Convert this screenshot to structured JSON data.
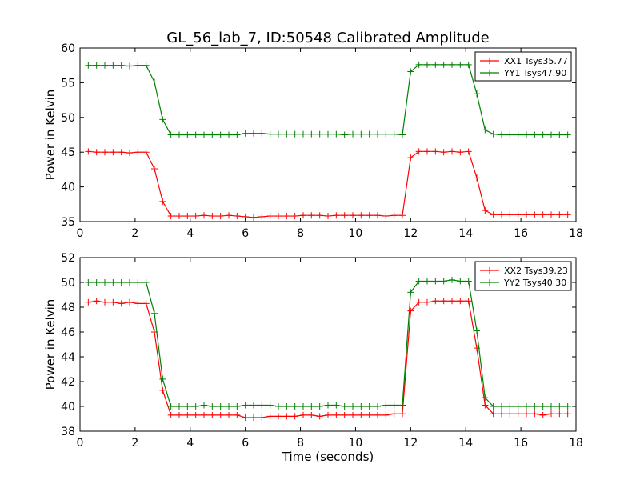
{
  "figure": {
    "title": "GL_56_lab_7, ID:50548 Calibrated Amplitude",
    "xlabel": "Time (seconds)"
  },
  "colors": {
    "xx": "#ff0000",
    "yy": "#008000"
  },
  "chart_data": [
    {
      "type": "line",
      "title": "GL_56_lab_7, ID:50548 Calibrated Amplitude",
      "xlabel": "",
      "ylabel": "Power in Kelvin",
      "xlim": [
        0,
        18
      ],
      "ylim": [
        35,
        60
      ],
      "xticks": [
        "0",
        "2",
        "4",
        "6",
        "8",
        "10",
        "12",
        "14",
        "16",
        "18"
      ],
      "yticks": [
        "35",
        "40",
        "45",
        "50",
        "55",
        "60"
      ],
      "legend_position": "top-right",
      "x": [
        0.3,
        0.6,
        0.9,
        1.2,
        1.5,
        1.8,
        2.1,
        2.4,
        2.7,
        3.0,
        3.3,
        3.6,
        3.9,
        4.2,
        4.5,
        4.8,
        5.1,
        5.4,
        5.7,
        6.0,
        6.3,
        6.6,
        6.9,
        7.2,
        7.5,
        7.8,
        8.1,
        8.4,
        8.7,
        9.0,
        9.3,
        9.6,
        9.9,
        10.2,
        10.5,
        10.8,
        11.1,
        11.4,
        11.7,
        12.0,
        12.3,
        12.6,
        12.9,
        13.2,
        13.5,
        13.8,
        14.1,
        14.4,
        14.7,
        15.0,
        15.3,
        15.6,
        15.9,
        16.2,
        16.5,
        16.8,
        17.1,
        17.4,
        17.7
      ],
      "series": [
        {
          "name": "XX1 Tsys35.77",
          "values": [
            45.1,
            45.0,
            45.0,
            45.0,
            45.0,
            44.9,
            45.0,
            45.0,
            42.6,
            37.9,
            35.8,
            35.8,
            35.8,
            35.8,
            35.9,
            35.8,
            35.8,
            35.9,
            35.8,
            35.7,
            35.6,
            35.7,
            35.8,
            35.8,
            35.8,
            35.8,
            35.9,
            35.9,
            35.9,
            35.8,
            35.9,
            35.9,
            35.9,
            35.9,
            35.9,
            35.9,
            35.8,
            35.9,
            35.9,
            44.2,
            45.1,
            45.1,
            45.1,
            45.0,
            45.1,
            45.0,
            45.1,
            41.3,
            36.6,
            36.0,
            36.0,
            36.0,
            36.0,
            36.0,
            36.0,
            36.0,
            36.0,
            36.0,
            36.0
          ]
        },
        {
          "name": "YY1 Tsys47.90",
          "values": [
            57.5,
            57.5,
            57.5,
            57.5,
            57.5,
            57.4,
            57.5,
            57.5,
            55.1,
            49.7,
            47.5,
            47.5,
            47.5,
            47.5,
            47.5,
            47.5,
            47.5,
            47.5,
            47.5,
            47.7,
            47.7,
            47.7,
            47.6,
            47.6,
            47.6,
            47.6,
            47.6,
            47.6,
            47.6,
            47.6,
            47.6,
            47.5,
            47.6,
            47.6,
            47.6,
            47.6,
            47.6,
            47.6,
            47.5,
            56.6,
            57.6,
            57.6,
            57.6,
            57.6,
            57.6,
            57.6,
            57.6,
            53.4,
            48.2,
            47.6,
            47.5,
            47.5,
            47.5,
            47.5,
            47.5,
            47.5,
            47.5,
            47.5,
            47.5
          ]
        }
      ]
    },
    {
      "type": "line",
      "title": "",
      "xlabel": "Time (seconds)",
      "ylabel": "Power in Kelvin",
      "xlim": [
        0,
        18
      ],
      "ylim": [
        38,
        52
      ],
      "xticks": [
        "0",
        "2",
        "4",
        "6",
        "8",
        "10",
        "12",
        "14",
        "16",
        "18"
      ],
      "yticks": [
        "38",
        "40",
        "42",
        "44",
        "46",
        "48",
        "50",
        "52"
      ],
      "legend_position": "top-right",
      "x": [
        0.3,
        0.6,
        0.9,
        1.2,
        1.5,
        1.8,
        2.1,
        2.4,
        2.7,
        3.0,
        3.3,
        3.6,
        3.9,
        4.2,
        4.5,
        4.8,
        5.1,
        5.4,
        5.7,
        6.0,
        6.3,
        6.6,
        6.9,
        7.2,
        7.5,
        7.8,
        8.1,
        8.4,
        8.7,
        9.0,
        9.3,
        9.6,
        9.9,
        10.2,
        10.5,
        10.8,
        11.1,
        11.4,
        11.7,
        12.0,
        12.3,
        12.6,
        12.9,
        13.2,
        13.5,
        13.8,
        14.1,
        14.4,
        14.7,
        15.0,
        15.3,
        15.6,
        15.9,
        16.2,
        16.5,
        16.8,
        17.1,
        17.4,
        17.7
      ],
      "series": [
        {
          "name": "XX2 Tsys39.23",
          "values": [
            48.4,
            48.5,
            48.4,
            48.4,
            48.3,
            48.4,
            48.3,
            48.3,
            46.0,
            41.3,
            39.3,
            39.3,
            39.3,
            39.3,
            39.3,
            39.3,
            39.3,
            39.3,
            39.3,
            39.1,
            39.1,
            39.1,
            39.2,
            39.2,
            39.2,
            39.2,
            39.3,
            39.3,
            39.2,
            39.3,
            39.3,
            39.3,
            39.3,
            39.3,
            39.3,
            39.3,
            39.3,
            39.4,
            39.4,
            47.7,
            48.4,
            48.4,
            48.5,
            48.5,
            48.5,
            48.5,
            48.5,
            44.7,
            40.1,
            39.4,
            39.4,
            39.4,
            39.4,
            39.4,
            39.4,
            39.3,
            39.4,
            39.4,
            39.4
          ]
        },
        {
          "name": "YY2 Tsys40.30",
          "values": [
            50.0,
            50.0,
            50.0,
            50.0,
            50.0,
            50.0,
            50.0,
            50.0,
            47.5,
            42.2,
            40.0,
            40.0,
            40.0,
            40.0,
            40.1,
            40.0,
            40.0,
            40.0,
            40.0,
            40.1,
            40.1,
            40.1,
            40.1,
            40.0,
            40.0,
            40.0,
            40.0,
            40.0,
            40.0,
            40.1,
            40.1,
            40.0,
            40.0,
            40.0,
            40.0,
            40.0,
            40.1,
            40.1,
            40.1,
            49.2,
            50.1,
            50.1,
            50.1,
            50.1,
            50.2,
            50.1,
            50.1,
            46.1,
            40.7,
            40.0,
            40.0,
            40.0,
            40.0,
            40.0,
            40.0,
            40.0,
            40.0,
            40.0,
            40.0
          ]
        }
      ]
    }
  ]
}
